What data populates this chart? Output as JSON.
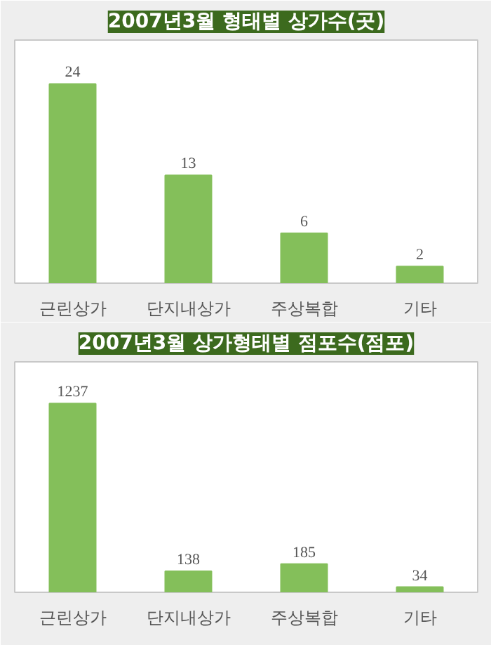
{
  "chart_data": [
    {
      "type": "bar",
      "title": "2007년3월 형태별 상가수(곳)",
      "categories": [
        "근린상가",
        "단지내상가",
        "주상복합",
        "기타"
      ],
      "values": [
        24,
        13,
        6,
        2
      ],
      "color": "#84bf5a",
      "data_labels": true
    },
    {
      "type": "bar",
      "title": "2007년3월 상가형태별 점포수(점포)",
      "categories": [
        "근린상가",
        "단지내상가",
        "주상복합",
        "기타"
      ],
      "values": [
        1237,
        138,
        185,
        34
      ],
      "color": "#84bf5a",
      "data_labels": true
    }
  ]
}
